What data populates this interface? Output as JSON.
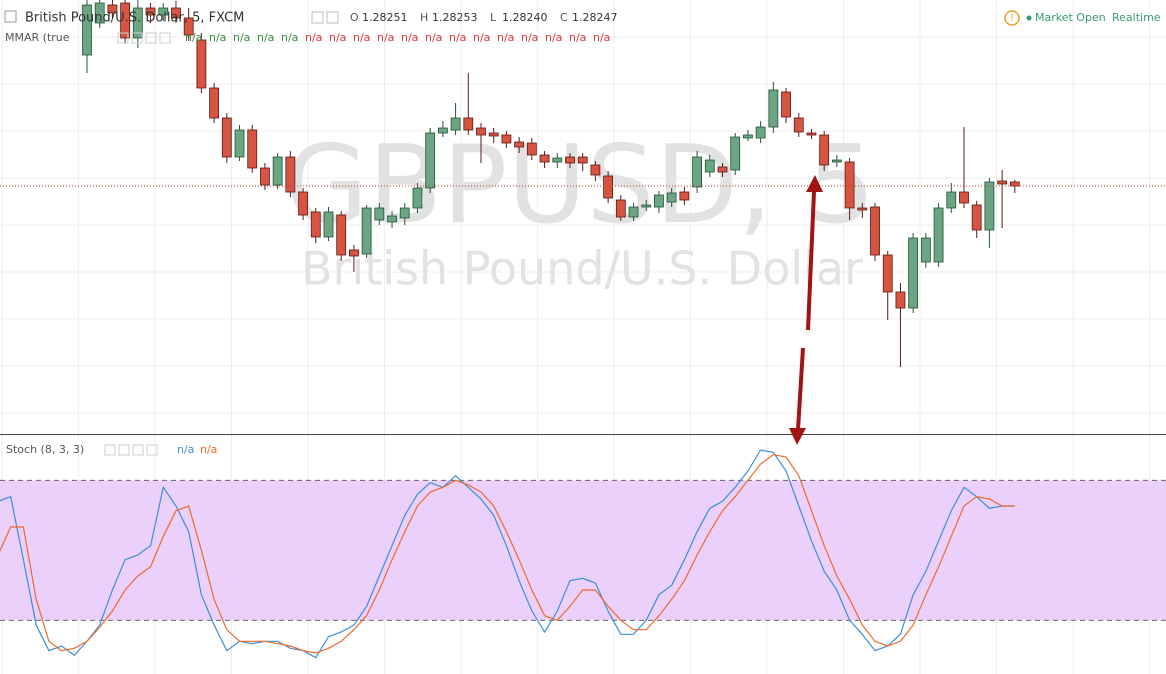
{
  "header": {
    "symbol": "British Pound/U.S. Dollar, 5, FXCM",
    "ohlc": [
      {
        "label": "O",
        "value": "1.28251"
      },
      {
        "label": "H",
        "value": "1.28253"
      },
      {
        "label": "L",
        "value": "1.28240"
      },
      {
        "label": "C",
        "value": "1.28247"
      }
    ],
    "status": "Market Open",
    "feed": "Realtime"
  },
  "watermark": {
    "ticker": "GBPUSD, 5",
    "name": "British Pound/U.S. Dollar"
  },
  "chart_data": [
    {
      "type": "candlestick",
      "title": "MMAR (true",
      "legend_values": [
        "n/a",
        "n/a",
        "n/a",
        "n/a",
        "n/a",
        "n/a",
        "n/a",
        "n/a",
        "n/a",
        "n/a",
        "n/a",
        "n/a",
        "n/a",
        "n/a",
        "n/a",
        "n/a",
        "n/a",
        "n/a"
      ],
      "ylim": [
        1.27999,
        1.28433
      ],
      "up_color": "#6ba583",
      "down_color": "#d75442",
      "open": [
        1.28378,
        1.2841,
        1.28428,
        1.2843,
        1.28395,
        1.28425,
        1.28418,
        1.28425,
        1.28415,
        1.28393,
        1.28345,
        1.28315,
        1.28276,
        1.28303,
        1.28265,
        1.28248,
        1.28276,
        1.28241,
        1.28221,
        1.28196,
        1.28218,
        1.28183,
        1.28179,
        1.28213,
        1.28211,
        1.28215,
        1.28225,
        1.28245,
        1.283,
        1.28303,
        1.28315,
        1.28305,
        1.283,
        1.28298,
        1.28291,
        1.2829,
        1.28278,
        1.28271,
        1.28276,
        1.28276,
        1.28268,
        1.28257,
        1.28233,
        1.28216,
        1.28226,
        1.28226,
        1.28231,
        1.28241,
        1.28246,
        1.28261,
        1.28266,
        1.28263,
        1.28295,
        1.28295,
        1.28306,
        1.28341,
        1.28315,
        1.283,
        1.28298,
        1.28271,
        1.28271,
        1.28225,
        1.28226,
        1.28178,
        1.28141,
        1.28125,
        1.28171,
        1.28171,
        1.28225,
        1.28241,
        1.28228,
        1.28203,
        1.28252,
        1.28251
      ],
      "high": [
        1.28433,
        1.28433,
        1.28433,
        1.28433,
        1.28433,
        1.2843,
        1.2843,
        1.28432,
        1.28425,
        1.284,
        1.2835,
        1.2832,
        1.28308,
        1.28308,
        1.2827,
        1.2828,
        1.28282,
        1.28245,
        1.28225,
        1.28226,
        1.28222,
        1.28188,
        1.28228,
        1.2823,
        1.28222,
        1.2823,
        1.2825,
        1.28305,
        1.28312,
        1.2833,
        1.2836,
        1.2831,
        1.28305,
        1.28302,
        1.28296,
        1.28295,
        1.28282,
        1.2828,
        1.2828,
        1.2828,
        1.28272,
        1.28262,
        1.28238,
        1.2823,
        1.28233,
        1.28242,
        1.28245,
        1.28246,
        1.28282,
        1.28278,
        1.2827,
        1.283,
        1.28303,
        1.28312,
        1.28351,
        1.28345,
        1.2832,
        1.28304,
        1.28302,
        1.28278,
        1.28275,
        1.2823,
        1.2823,
        1.28182,
        1.2815,
        1.282,
        1.282,
        1.2823,
        1.2825,
        1.28306,
        1.28232,
        1.28255,
        1.28263,
        1.28253
      ],
      "low": [
        1.2836,
        1.28405,
        1.28415,
        1.2839,
        1.28385,
        1.2841,
        1.28412,
        1.2841,
        1.28392,
        1.2834,
        1.2831,
        1.2827,
        1.28272,
        1.2826,
        1.28243,
        1.28244,
        1.28236,
        1.28213,
        1.2819,
        1.28192,
        1.28172,
        1.28161,
        1.28175,
        1.28208,
        1.28205,
        1.28208,
        1.2822,
        1.2824,
        1.28296,
        1.28298,
        1.28298,
        1.2827,
        1.2829,
        1.28285,
        1.2828,
        1.28273,
        1.28265,
        1.28265,
        1.28265,
        1.28262,
        1.28252,
        1.2823,
        1.28212,
        1.28212,
        1.28222,
        1.2822,
        1.28226,
        1.28228,
        1.2824,
        1.28256,
        1.28256,
        1.28258,
        1.28292,
        1.2829,
        1.283,
        1.2831,
        1.28296,
        1.28294,
        1.28262,
        1.28266,
        1.28213,
        1.28215,
        1.28172,
        1.28113,
        1.28066,
        1.2812,
        1.28165,
        1.28166,
        1.2822,
        1.28225,
        1.28195,
        1.28185,
        1.28205,
        1.2824
      ],
      "close": [
        1.28428,
        1.2843,
        1.2842,
        1.28395,
        1.28425,
        1.28418,
        1.28425,
        1.28415,
        1.28398,
        1.28345,
        1.28315,
        1.28276,
        1.28303,
        1.28265,
        1.28248,
        1.28276,
        1.28241,
        1.28218,
        1.28196,
        1.28221,
        1.28178,
        1.28177,
        1.28225,
        1.28225,
        1.28217,
        1.28225,
        1.28245,
        1.283,
        1.28305,
        1.28315,
        1.28303,
        1.28298,
        1.28297,
        1.2829,
        1.28286,
        1.28278,
        1.28271,
        1.28275,
        1.2827,
        1.2827,
        1.28258,
        1.28235,
        1.28216,
        1.28226,
        1.28228,
        1.28238,
        1.2824,
        1.28233,
        1.28276,
        1.28273,
        1.28261,
        1.28296,
        1.28298,
        1.28306,
        1.28343,
        1.28316,
        1.28301,
        1.28298,
        1.28268,
        1.28273,
        1.28225,
        1.28223,
        1.28178,
        1.28141,
        1.28125,
        1.28195,
        1.28195,
        1.28225,
        1.28241,
        1.2823,
        1.28203,
        1.28251,
        1.28249,
        1.28247
      ]
    },
    {
      "type": "line",
      "title": "Stoch (8, 3, 3)",
      "ylim": [
        -3,
        99
      ],
      "levels": [
        20,
        80
      ],
      "band_color": "#e6c8fa",
      "series": [
        {
          "name": "n/a",
          "color": "#3d8fd8",
          "values": [
            71,
            73,
            46,
            18,
            7,
            9,
            5,
            11,
            18,
            33,
            46,
            48,
            52,
            77,
            69,
            58,
            31,
            18,
            7,
            11,
            10,
            11,
            11,
            8,
            7,
            4,
            13,
            15,
            18,
            26,
            39,
            52,
            65,
            74,
            79,
            77,
            82,
            77,
            72,
            65,
            52,
            37,
            24,
            15,
            24,
            37,
            38,
            36,
            24,
            14,
            14,
            20,
            31,
            35,
            46,
            58,
            68,
            71,
            77,
            84,
            93,
            92,
            84,
            69,
            54,
            41,
            33,
            20,
            14,
            7,
            9,
            14,
            31,
            41,
            54,
            67,
            77,
            73,
            68,
            69,
            69
          ]
        },
        {
          "name": "n/a",
          "color": "#f06a2a",
          "values": [
            48,
            60,
            60,
            29,
            11,
            7,
            8,
            11,
            17,
            24,
            33,
            39,
            43,
            56,
            67,
            69,
            50,
            29,
            16,
            11,
            11,
            11,
            10,
            9,
            7,
            6,
            8,
            11,
            16,
            22,
            33,
            46,
            58,
            69,
            75,
            77,
            80,
            78,
            75,
            69,
            58,
            46,
            33,
            22,
            20,
            26,
            33,
            33,
            26,
            20,
            16,
            16,
            22,
            29,
            37,
            48,
            58,
            67,
            73,
            80,
            87,
            91,
            90,
            82,
            67,
            52,
            39,
            29,
            18,
            11,
            9,
            11,
            18,
            31,
            43,
            56,
            69,
            73,
            72,
            69,
            69
          ]
        }
      ]
    }
  ]
}
